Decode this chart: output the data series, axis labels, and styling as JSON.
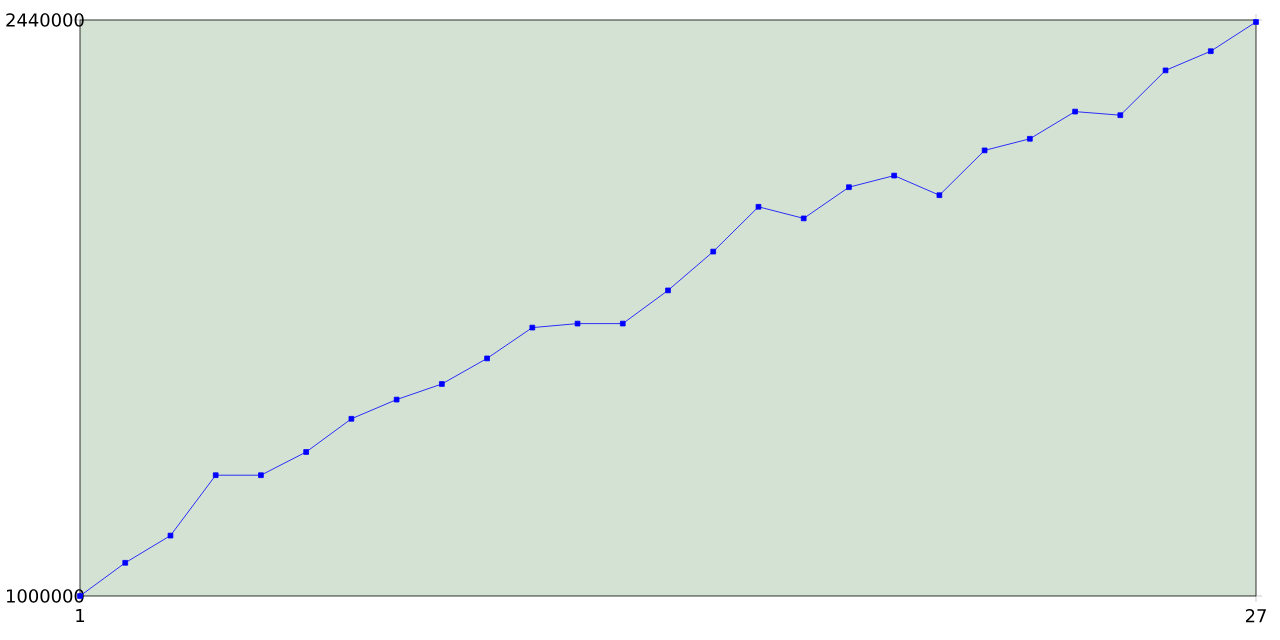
{
  "chart_data": {
    "type": "line",
    "x": [
      1,
      2,
      3,
      4,
      5,
      6,
      7,
      8,
      9,
      10,
      11,
      12,
      13,
      14,
      15,
      16,
      17,
      18,
      19,
      20,
      21,
      22,
      23,
      24,
      25,
      26,
      27
    ],
    "values": [
      1000000,
      1083000,
      1151000,
      1302000,
      1302000,
      1360000,
      1443000,
      1491000,
      1530000,
      1594000,
      1671000,
      1681000,
      1681000,
      1764000,
      1861000,
      1973000,
      1944000,
      2022000,
      2051000,
      2002000,
      2114000,
      2143000,
      2211000,
      2202000,
      2314000,
      2362000,
      2435000
    ],
    "color": "#0000ff",
    "marker": "square",
    "xlim": [
      1,
      27
    ],
    "ylim": [
      1000000,
      2440000
    ],
    "xticks": [
      1,
      27
    ],
    "yticks": [
      1000000,
      2440000
    ]
  }
}
